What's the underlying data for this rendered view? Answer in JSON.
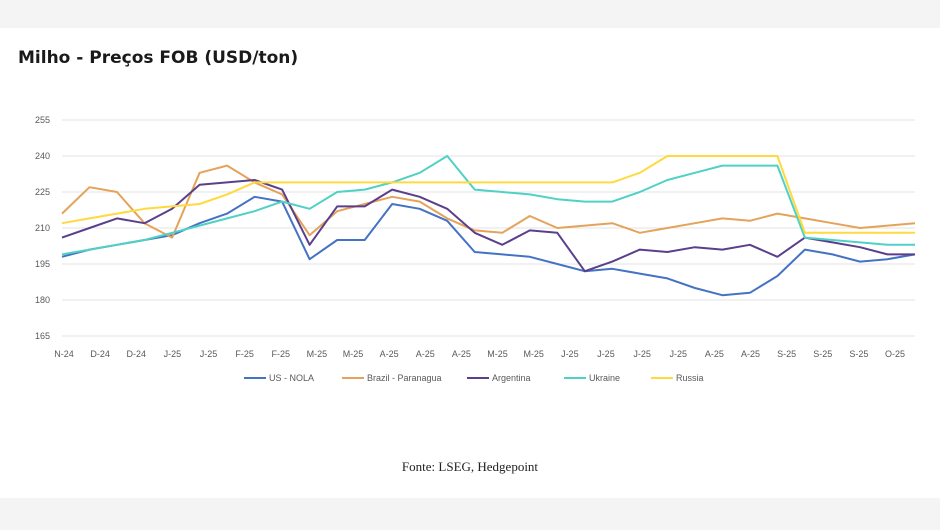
{
  "chart_data": {
    "type": "line",
    "title": "Milho - Preços FOB (USD/ton)",
    "xlabel": "",
    "ylabel": "",
    "ylim": [
      165,
      255
    ],
    "yticks": [
      165,
      180,
      195,
      210,
      225,
      240,
      255
    ],
    "x_tick_labels": [
      "N-24",
      "D-24",
      "D-24",
      "J-25",
      "J-25",
      "F-25",
      "F-25",
      "M-25",
      "M-25",
      "A-25",
      "A-25",
      "A-25",
      "M-25",
      "M-25",
      "J-25",
      "J-25",
      "J-25",
      "J-25",
      "A-25",
      "A-25",
      "S-25",
      "S-25",
      "S-25",
      "O-25"
    ],
    "grid": "horizontal",
    "legend_position": "bottom",
    "series": [
      {
        "name": "US - NOLA",
        "color": "#4472c4",
        "values": [
          198,
          201,
          203,
          205,
          207,
          212,
          216,
          223,
          221,
          197,
          205,
          205,
          220,
          218,
          213,
          200,
          199,
          198,
          195,
          192,
          193,
          191,
          189,
          185,
          182,
          183,
          190,
          201,
          199,
          196,
          197,
          199
        ]
      },
      {
        "name": "Brazil - Paranagua",
        "color": "#e4a35a",
        "values": [
          216,
          227,
          225,
          212,
          206,
          233,
          236,
          229,
          224,
          207,
          217,
          220,
          223,
          221,
          214,
          209,
          208,
          215,
          210,
          211,
          212,
          208,
          210,
          212,
          214,
          213,
          216,
          214,
          212,
          210,
          211,
          212
        ]
      },
      {
        "name": "Argentina",
        "color": "#5b3f8c",
        "values": [
          206,
          210,
          214,
          212,
          218,
          228,
          229,
          230,
          226,
          203,
          219,
          219,
          226,
          223,
          218,
          208,
          203,
          209,
          208,
          192,
          196,
          201,
          200,
          202,
          201,
          203,
          198,
          206,
          204,
          202,
          199,
          199
        ]
      },
      {
        "name": "Ukraine",
        "color": "#4fd1c5",
        "values": [
          199,
          201,
          203,
          205,
          208,
          211,
          214,
          217,
          221,
          218,
          225,
          226,
          229,
          233,
          240,
          226,
          225,
          224,
          222,
          221,
          221,
          225,
          230,
          233,
          236,
          236,
          236,
          206,
          205,
          204,
          203,
          203
        ]
      },
      {
        "name": "Russia",
        "color": "#ffd93d",
        "values": [
          212,
          214,
          216,
          218,
          219,
          220,
          224,
          229,
          229,
          229,
          229,
          229,
          229,
          229,
          229,
          229,
          229,
          229,
          229,
          229,
          229,
          233,
          240,
          240,
          240,
          240,
          240,
          208,
          208,
          208,
          208,
          208
        ]
      }
    ]
  },
  "source": "Fonte: LSEG, Hedgepoint"
}
